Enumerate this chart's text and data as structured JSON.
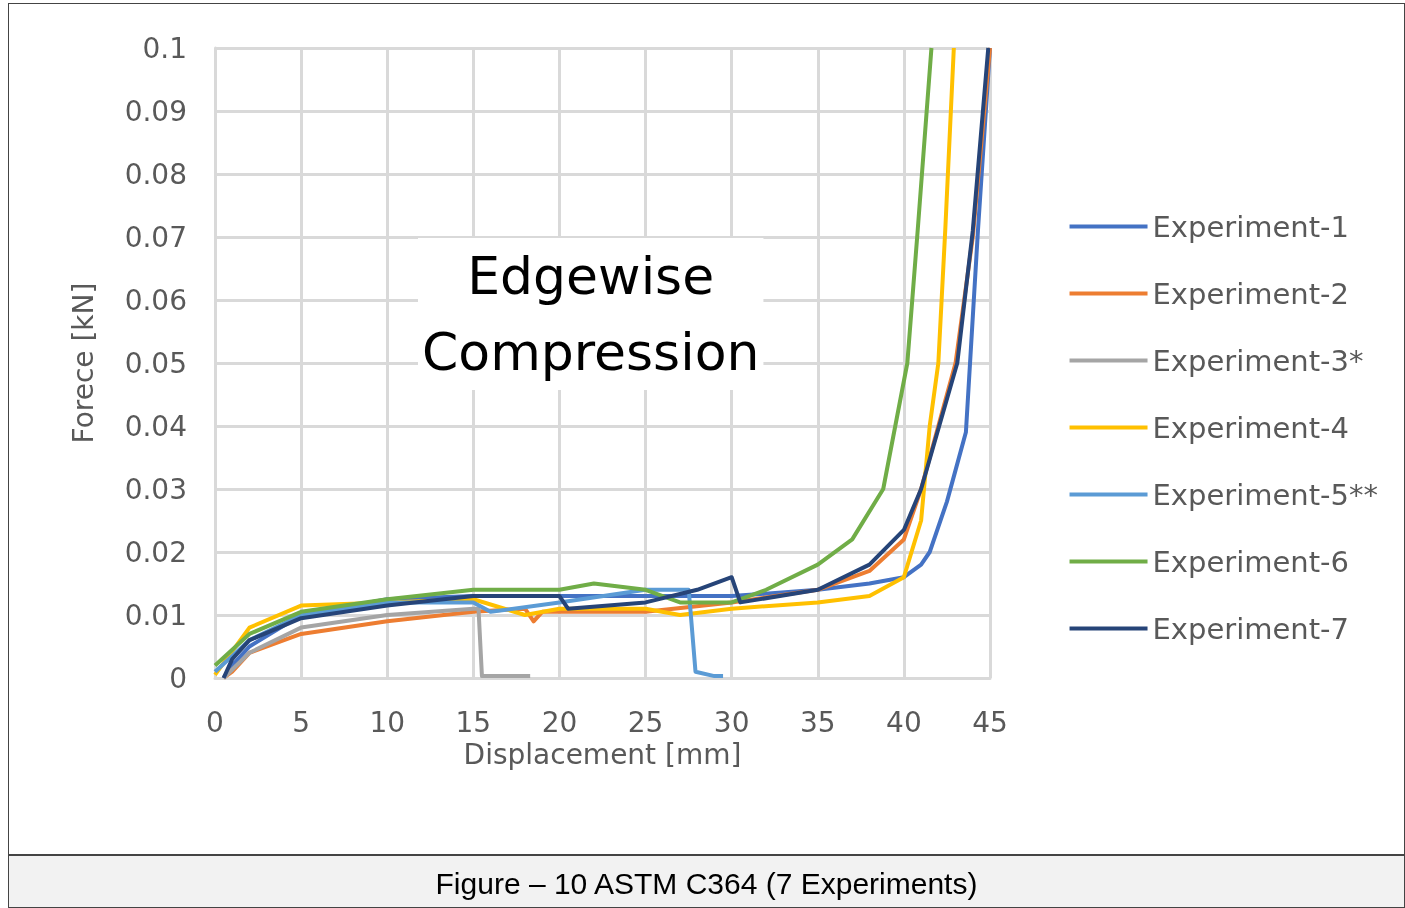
{
  "chart_data": {
    "type": "line",
    "xlabel": "Displacement [mm]",
    "ylabel": "Forece [kN]",
    "annotations": [
      "Edgewise\nCompression",
      "Figure – 10 ASTM C364 (7 Experiments)"
    ],
    "xlim": [
      0,
      45
    ],
    "xticks": [
      0,
      5,
      10,
      15,
      20,
      25,
      30,
      35,
      40,
      45
    ],
    "ylim": [
      0,
      0.1
    ],
    "yticks": [
      0,
      0.01,
      0.02,
      0.03,
      0.04,
      0.05,
      0.06,
      0.07,
      0.08,
      0.09,
      0.1
    ],
    "grid": true,
    "legend": "right",
    "marker": "none",
    "line_style": "solid",
    "series": [
      {
        "name": "Experiment-1",
        "color": "#4472c4",
        "x": [
          0.5,
          1,
          2,
          5,
          10,
          15,
          20,
          25,
          30,
          35,
          38,
          40,
          41,
          41.5,
          42.5,
          43,
          43.6,
          44.3,
          45
        ],
        "values": [
          0,
          0.002,
          0.005,
          0.01,
          0.0125,
          0.013,
          0.013,
          0.013,
          0.013,
          0.014,
          0.015,
          0.016,
          0.018,
          0.02,
          0.028,
          0.033,
          0.039,
          0.071,
          0.1
        ]
      },
      {
        "name": "Experiment-2",
        "color": "#ed7d31",
        "x": [
          0.5,
          1,
          2,
          5,
          10,
          15,
          18,
          18.5,
          19,
          25,
          30,
          35,
          38,
          40,
          41,
          43,
          44,
          45
        ],
        "values": [
          0,
          0.001,
          0.004,
          0.007,
          0.009,
          0.0105,
          0.011,
          0.009,
          0.0105,
          0.0105,
          0.012,
          0.014,
          0.017,
          0.022,
          0.03,
          0.05,
          0.07,
          0.1
        ]
      },
      {
        "name": "Experiment-3*",
        "color": "#a5a5a5",
        "x": [
          0.5,
          2,
          5,
          10,
          15,
          15.3,
          15.5,
          18.3
        ],
        "values": [
          0,
          0.004,
          0.008,
          0.01,
          0.011,
          0.011,
          0.0003,
          0.0003
        ]
      },
      {
        "name": "Experiment-4",
        "color": "#ffc000",
        "x": [
          0,
          2,
          5,
          10,
          15,
          18,
          20,
          25,
          27,
          30,
          35,
          38,
          40,
          41,
          41.5,
          42,
          42.4,
          42.9
        ],
        "values": [
          0.0005,
          0.008,
          0.0115,
          0.012,
          0.0125,
          0.01,
          0.011,
          0.011,
          0.01,
          0.011,
          0.012,
          0.013,
          0.016,
          0.025,
          0.04,
          0.05,
          0.071,
          0.1
        ]
      },
      {
        "name": "Experiment-5**",
        "color": "#5b9bd5",
        "x": [
          0,
          2,
          5,
          10,
          15,
          16,
          20,
          25,
          27.5,
          27.6,
          27.9,
          29,
          29.5
        ],
        "values": [
          0.001,
          0.006,
          0.01,
          0.012,
          0.012,
          0.0105,
          0.012,
          0.014,
          0.014,
          0.011,
          0.001,
          0.0003,
          0.0003
        ]
      },
      {
        "name": "Experiment-6",
        "color": "#70ad47",
        "x": [
          0,
          2,
          5,
          10,
          15,
          20,
          22,
          25,
          27,
          30,
          32,
          35,
          37,
          38.8,
          39.5,
          40.2,
          40.8,
          41.6
        ],
        "values": [
          0.002,
          0.007,
          0.0105,
          0.0125,
          0.014,
          0.014,
          0.015,
          0.014,
          0.012,
          0.012,
          0.014,
          0.018,
          0.022,
          0.03,
          0.04,
          0.05,
          0.071,
          0.1
        ]
      },
      {
        "name": "Experiment-7",
        "color": "#264478",
        "x": [
          0.5,
          1,
          2,
          5,
          10,
          15,
          20,
          20.5,
          25,
          28,
          30,
          30.5,
          35,
          38,
          40,
          41,
          43.1,
          44,
          44.9
        ],
        "values": [
          0,
          0.003,
          0.006,
          0.0095,
          0.0115,
          0.013,
          0.013,
          0.011,
          0.012,
          0.014,
          0.016,
          0.012,
          0.014,
          0.018,
          0.0235,
          0.03,
          0.05,
          0.071,
          0.1
        ]
      }
    ]
  }
}
